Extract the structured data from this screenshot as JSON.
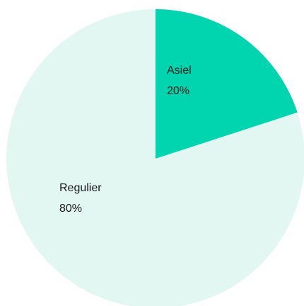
{
  "chart_data": {
    "type": "pie",
    "title": "",
    "slices": [
      {
        "label": "Asiel",
        "value": 20,
        "value_label": "20%",
        "color": "#00d5b0"
      },
      {
        "label": "Regulier",
        "value": 80,
        "value_label": "80%",
        "color": "#e3f7f2"
      }
    ]
  }
}
